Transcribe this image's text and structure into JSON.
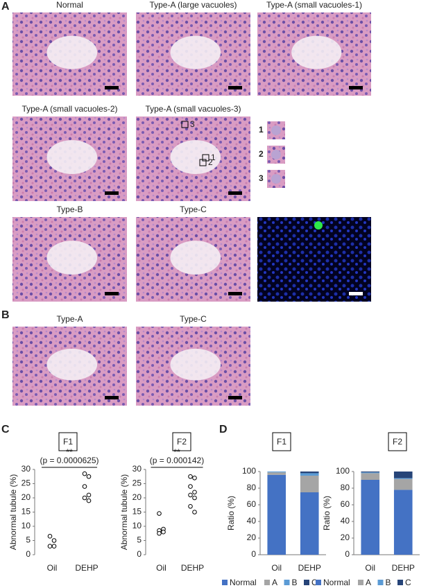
{
  "panel_labels": [
    "A",
    "B",
    "C",
    "D"
  ],
  "panel_a": {
    "titles": [
      "Normal",
      "Type-A (large vacuoles)",
      "Type-A (small vacuoles-1)",
      "Type-A (small vacuoles-2)",
      "Type-A (small vacuoles-3)",
      "Type-B",
      "Type-C"
    ],
    "box_labels": [
      "3",
      "1",
      "2"
    ],
    "inset_labels": [
      "1",
      "2",
      "3"
    ]
  },
  "panel_b": {
    "titles": [
      "Type-A",
      "Type-C"
    ]
  },
  "chart_data": [
    {
      "type": "scatter",
      "title": "F1",
      "categories": [
        "Oil",
        "DEHP"
      ],
      "values": [
        [
          6.5,
          5,
          3,
          3
        ],
        [
          28.5,
          27.5,
          24,
          21,
          20,
          19
        ]
      ],
      "color": "#000000",
      "y_label": "Abnormal tubule (%)",
      "ylim": [
        0,
        30
      ],
      "yticks": [
        0,
        5,
        10,
        15,
        20,
        25,
        30
      ],
      "significance": "**",
      "annotation": "(p = 0.0000625)"
    },
    {
      "type": "scatter",
      "title": "F2",
      "categories": [
        "Oil",
        "DEHP"
      ],
      "values": [
        [
          14.5,
          9,
          8.5,
          8,
          7.5
        ],
        [
          27.5,
          27,
          24,
          22,
          21,
          20,
          17,
          15
        ]
      ],
      "color": "#000000",
      "y_label": "Abnormal tubule (%)",
      "ylim": [
        0,
        30
      ],
      "yticks": [
        0,
        5,
        10,
        15,
        20,
        25,
        30
      ],
      "significance": "**",
      "annotation": "(p = 0.000142)"
    },
    {
      "type": "stacked_bar",
      "title": "F1",
      "categories": [
        "Oil",
        "DEHP"
      ],
      "series": [
        {
          "name": "Normal",
          "color": "#4472c4",
          "values": [
            96,
            75
          ]
        },
        {
          "name": "A",
          "color": "#a5a5a5",
          "values": [
            3,
            20
          ]
        },
        {
          "name": "B",
          "color": "#5b9bd5",
          "values": [
            1,
            3
          ]
        },
        {
          "name": "C",
          "color": "#264478",
          "values": [
            0,
            2
          ]
        }
      ],
      "y_label": "Ratio (%)",
      "ylim": [
        0,
        100
      ],
      "yticks": [
        0,
        20,
        40,
        60,
        80,
        100
      ],
      "legend": "bottom"
    },
    {
      "type": "stacked_bar",
      "title": "F2",
      "categories": [
        "Oil",
        "DEHP"
      ],
      "series": [
        {
          "name": "Normal",
          "color": "#4472c4",
          "values": [
            90,
            78
          ]
        },
        {
          "name": "A",
          "color": "#a5a5a5",
          "values": [
            8,
            13
          ]
        },
        {
          "name": "B",
          "color": "#5b9bd5",
          "values": [
            1,
            1
          ]
        },
        {
          "name": "C",
          "color": "#264478",
          "values": [
            1,
            8
          ]
        }
      ],
      "y_label": "Ratio (%)",
      "ylim": [
        0,
        100
      ],
      "yticks": [
        0,
        20,
        40,
        60,
        80,
        100
      ],
      "legend": "bottom"
    }
  ]
}
